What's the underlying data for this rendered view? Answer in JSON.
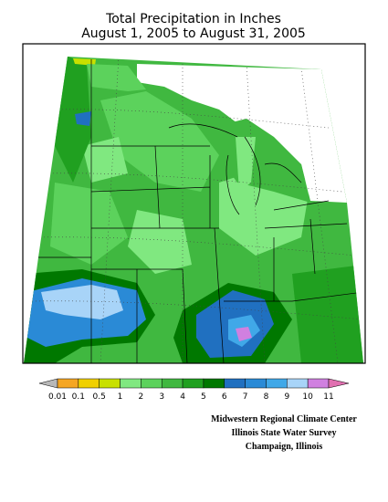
{
  "title": [
    "Total Precipitation in Inches",
    "August 1, 2005 to August 31, 2005"
  ],
  "legend": {
    "labels": [
      "0.01",
      "0.1",
      "0.5",
      "1",
      "2",
      "3",
      "4",
      "5",
      "6",
      "7",
      "8",
      "9",
      "10",
      "11"
    ],
    "colors": [
      "#b8b8b8",
      "#f5a623",
      "#f0d000",
      "#c8e000",
      "#80e880",
      "#5cd25c",
      "#40b840",
      "#20a020",
      "#007800",
      "#2070c0",
      "#2a8ad6",
      "#40a8e8",
      "#a8d4f8",
      "#d080e0",
      "#e070b0"
    ]
  },
  "credits": [
    "Midwestern Regional Climate Center",
    "Illinois State Water Survey",
    "Champaign, Illinois"
  ]
}
